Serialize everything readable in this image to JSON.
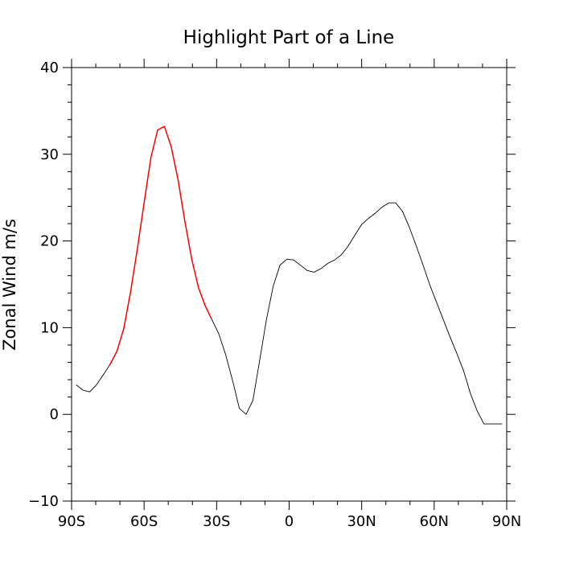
{
  "chart_data": {
    "type": "line",
    "title": "Highlight Part of a Line",
    "xlabel": "",
    "ylabel": "Zonal Wind m/s",
    "xlim": [
      -90,
      90
    ],
    "ylim": [
      -10,
      40
    ],
    "x_ticks": [
      {
        "value": -90,
        "label": "90S"
      },
      {
        "value": -60,
        "label": "60S"
      },
      {
        "value": -30,
        "label": "30S"
      },
      {
        "value": 0,
        "label": "0"
      },
      {
        "value": 30,
        "label": "30N"
      },
      {
        "value": 60,
        "label": "60N"
      },
      {
        "value": 90,
        "label": "90N"
      }
    ],
    "y_ticks": [
      {
        "value": -10,
        "label": "−10"
      },
      {
        "value": 0,
        "label": "0"
      },
      {
        "value": 10,
        "label": "10"
      },
      {
        "value": 20,
        "label": "20"
      },
      {
        "value": 30,
        "label": "30"
      },
      {
        "value": 40,
        "label": "40"
      }
    ],
    "grid": false,
    "highlight_range": [
      -74.4,
      -32.2
    ],
    "colors": {
      "base": "#000000",
      "highlight": "#ff0000"
    },
    "x": [
      -88.1,
      -85.3,
      -82.5,
      -79.7,
      -76.8,
      -74.0,
      -71.2,
      -68.4,
      -65.6,
      -62.8,
      -60.0,
      -57.2,
      -54.4,
      -51.6,
      -48.8,
      -45.9,
      -43.1,
      -40.3,
      -37.5,
      -34.7,
      -31.9,
      -29.1,
      -26.3,
      -23.4,
      -20.6,
      -17.8,
      -15.0,
      -12.2,
      -9.4,
      -6.6,
      -3.8,
      -0.9,
      1.9,
      4.7,
      7.5,
      10.3,
      13.1,
      15.9,
      18.8,
      21.6,
      24.4,
      27.2,
      30.0,
      32.8,
      35.6,
      38.4,
      41.3,
      44.1,
      46.9,
      49.7,
      52.5,
      55.3,
      58.1,
      60.9,
      63.8,
      66.6,
      69.4,
      72.2,
      75.0,
      77.8,
      80.6,
      83.4,
      86.3,
      88.1
    ],
    "y": [
      3.4,
      2.8,
      2.6,
      3.4,
      4.6,
      5.8,
      7.3,
      9.9,
      14.1,
      19.1,
      24.4,
      29.6,
      32.8,
      33.2,
      30.9,
      27.0,
      22.2,
      17.9,
      14.6,
      12.5,
      10.9,
      9.3,
      6.9,
      3.9,
      0.7,
      0.0,
      1.6,
      6.2,
      10.9,
      14.8,
      17.2,
      17.9,
      17.8,
      17.2,
      16.6,
      16.4,
      16.8,
      17.4,
      17.8,
      18.4,
      19.4,
      20.7,
      21.9,
      22.6,
      23.2,
      23.9,
      24.4,
      24.4,
      23.4,
      21.6,
      19.5,
      17.3,
      15.0,
      13.0,
      10.9,
      8.9,
      7.0,
      5.0,
      2.4,
      0.4,
      -1.1,
      -1.1,
      -1.1,
      -1.1
    ]
  }
}
